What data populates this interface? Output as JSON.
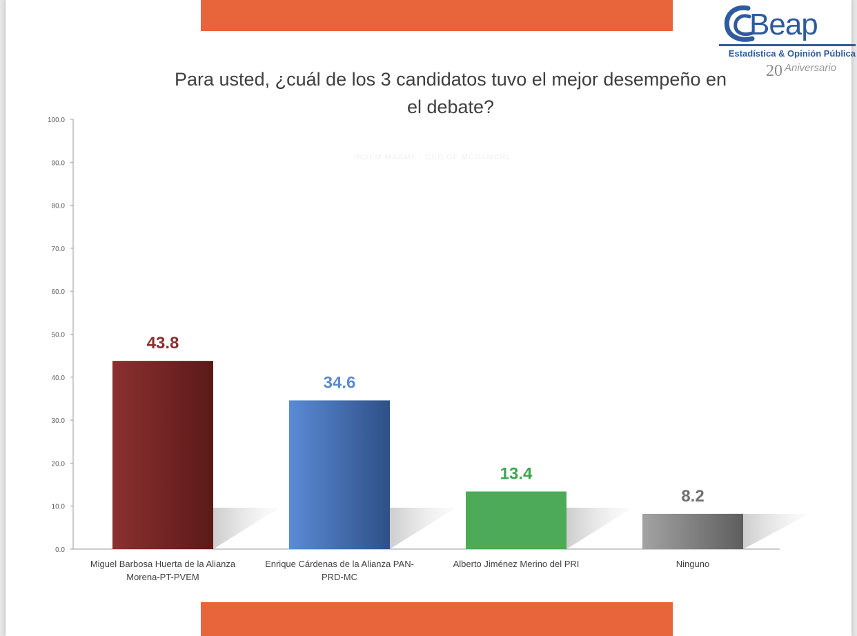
{
  "logo": {
    "word": "Beap",
    "subtitle": "Estadística & Opinión Pública",
    "anniversary_number": "20",
    "anniversary_text": "Aniversario"
  },
  "watermark_text": "INDEM MARME · CED OF MCDAMCRL",
  "colors": {
    "band": "#e8643a",
    "brand": "#2d5b9e"
  },
  "chart_data": {
    "type": "bar",
    "title": "Para usted, ¿cuál de los 3 candidatos tuvo el mejor desempeño en el debate?",
    "title_lines": [
      "Para usted, ¿cuál de los 3 candidatos tuvo el mejor desempeño en",
      "el debate?"
    ],
    "categories": [
      [
        "Miguel Barbosa Huerta de la Alianza",
        "Morena-PT-PVEM"
      ],
      [
        "Enrique Cárdenas de la Alianza PAN-",
        "PRD-MC"
      ],
      [
        "Alberto Jiménez Merino del PRI"
      ],
      [
        "Ninguno"
      ]
    ],
    "values": [
      43.8,
      34.6,
      13.4,
      8.2
    ],
    "value_labels": [
      "43.8",
      "34.6",
      "13.4",
      "8.2"
    ],
    "bar_colors": [
      [
        "#8b3030",
        "#5a1a18"
      ],
      [
        "#5a8bd6",
        "#2e5087"
      ],
      [
        "#4caa58",
        "#4caa58"
      ],
      [
        "#a3a3a3",
        "#5e5e5e"
      ]
    ],
    "label_colors": [
      "#8b2e2e",
      "#5b8ad0",
      "#3ea54f",
      "#707070"
    ],
    "ylim": [
      0,
      100
    ],
    "yticks": [
      "0.0",
      "10.0",
      "20.0",
      "30.0",
      "40.0",
      "50.0",
      "60.0",
      "70.0",
      "80.0",
      "90.0",
      "100.0"
    ],
    "grid": false,
    "legend": "none",
    "xlabel": "",
    "ylabel": ""
  }
}
